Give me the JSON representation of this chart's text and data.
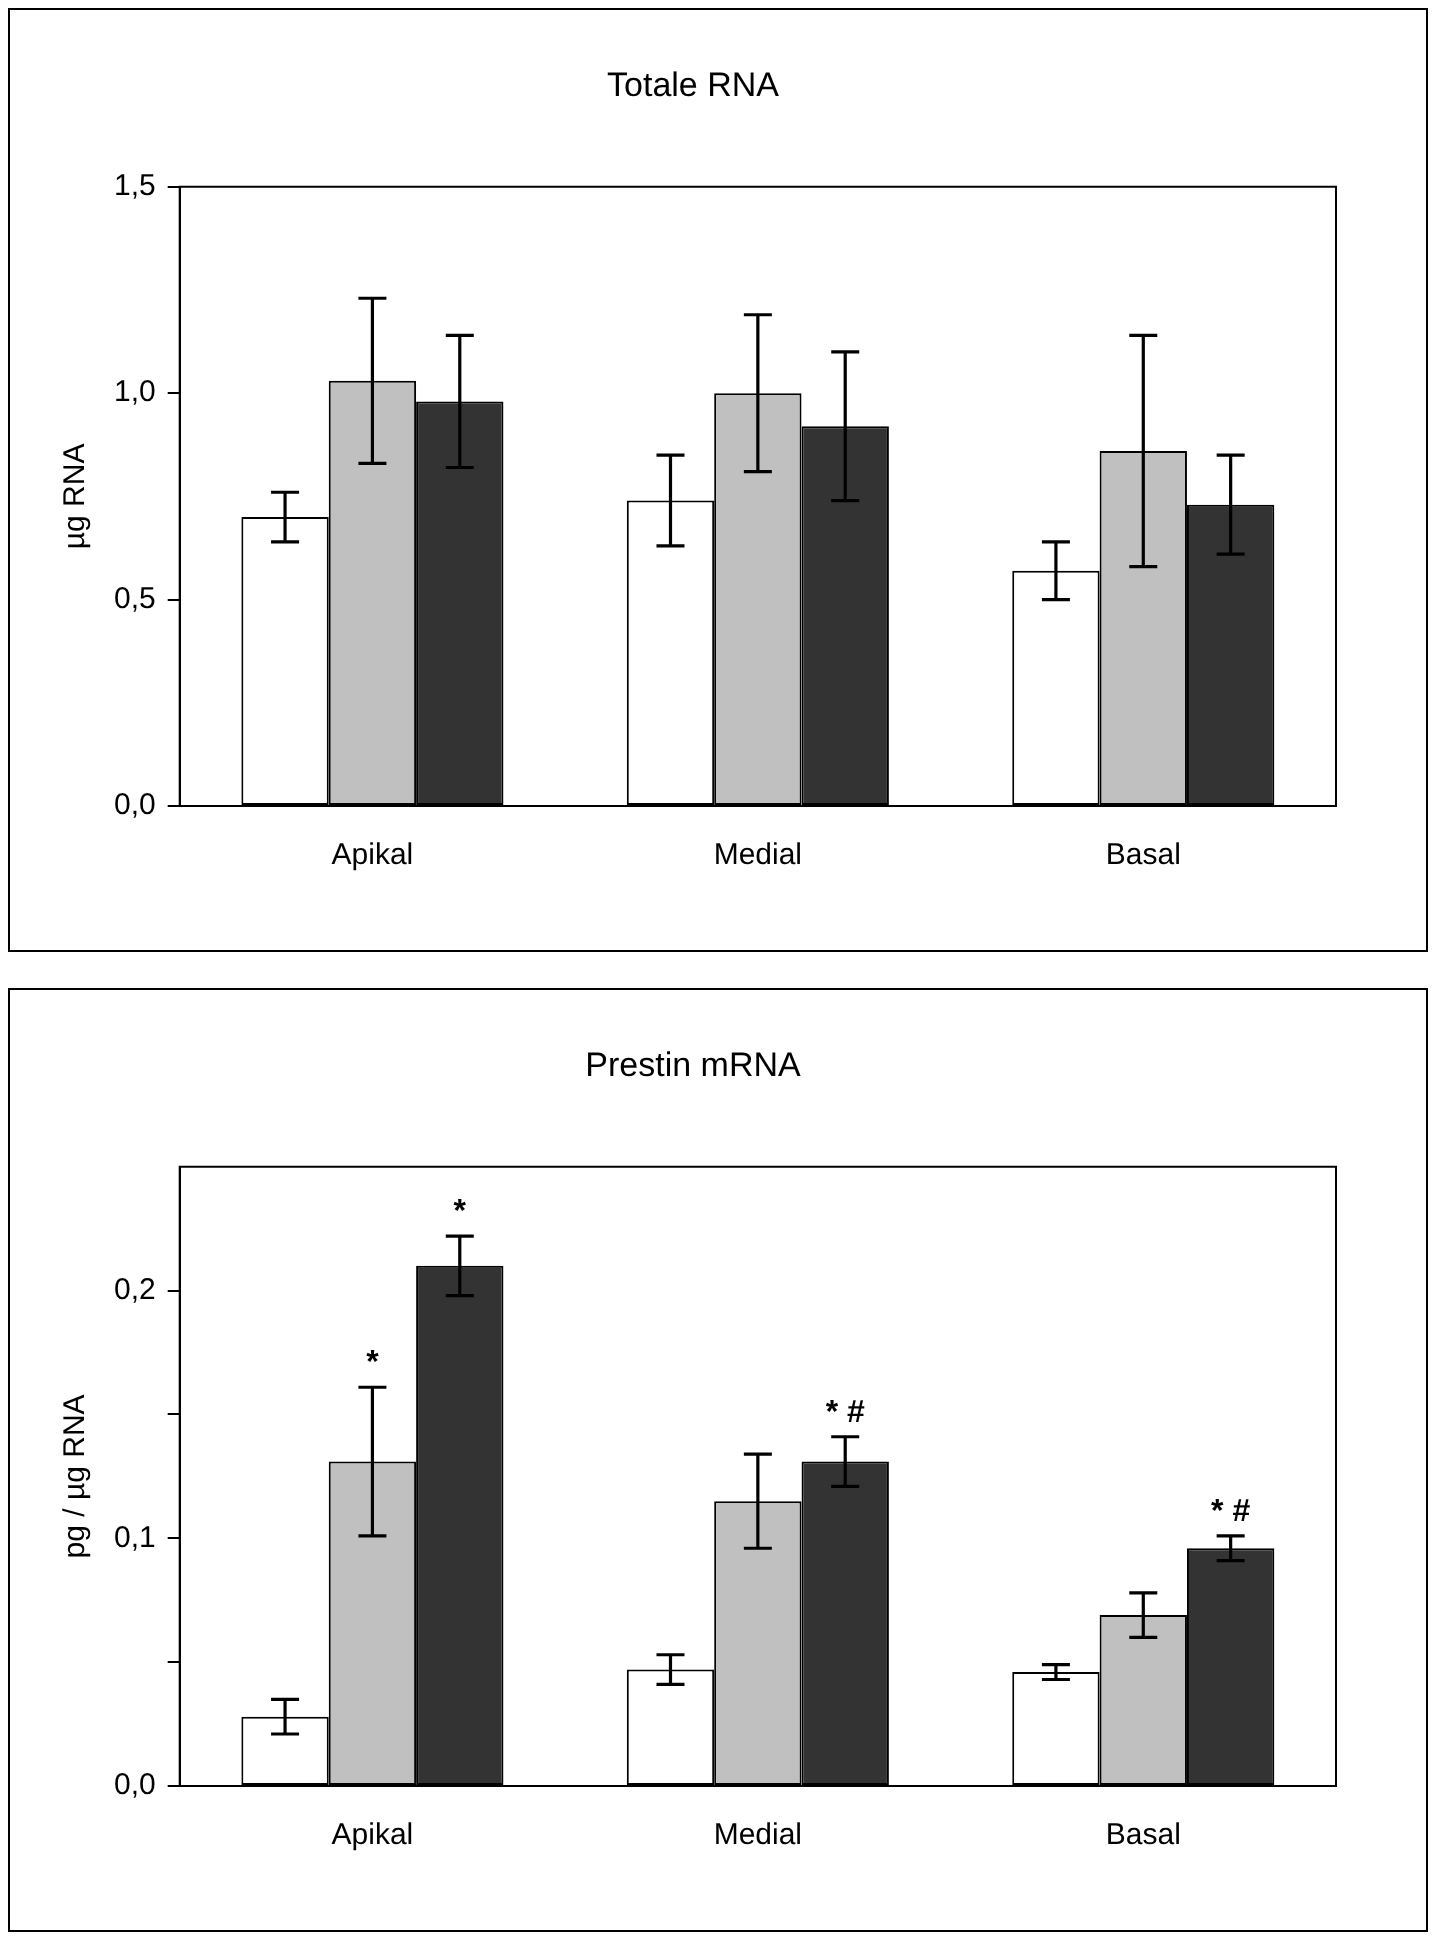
{
  "chart_data": [
    {
      "type": "bar",
      "title": "Totale RNA",
      "ylabel": "µg RNA",
      "categories": [
        "Apikal",
        "Medial",
        "Basal"
      ],
      "ylim": [
        0,
        1.5
      ],
      "yticks": [
        {
          "value": 0,
          "label": "0,0"
        },
        {
          "value": 0.5,
          "label": "0,5"
        },
        {
          "value": 1,
          "label": "1,0"
        },
        {
          "value": 1.5,
          "label": "1,5"
        }
      ],
      "grid": false,
      "legend": false,
      "series": [
        {
          "color": "#ffffff",
          "values": [
            0.7,
            0.74,
            0.57
          ],
          "errors": [
            0.06,
            0.11,
            0.07
          ]
        },
        {
          "color": "#c0c0c0",
          "values": [
            1.03,
            1.0,
            0.86
          ],
          "errors": [
            0.2,
            0.19,
            0.28
          ]
        },
        {
          "color": "#333333",
          "values": [
            0.98,
            0.92,
            0.73
          ],
          "errors": [
            0.16,
            0.18,
            0.12
          ]
        }
      ]
    },
    {
      "type": "bar",
      "title": "Prestin mRNA",
      "ylabel": "pg / µg RNA",
      "categories": [
        "Apikal",
        "Medial",
        "Basal"
      ],
      "ylim": [
        0,
        0.25
      ],
      "yticks": [
        {
          "value": 0,
          "label": "0,0"
        },
        {
          "value": 0.05,
          "label": null
        },
        {
          "value": 0.1,
          "label": "0,1"
        },
        {
          "value": 0.15,
          "label": null
        },
        {
          "value": 0.2,
          "label": "0,2"
        }
      ],
      "grid": false,
      "legend": false,
      "series": [
        {
          "color": "#ffffff",
          "values": [
            0.028,
            0.047,
            0.046
          ],
          "errors": [
            0.007,
            0.006,
            0.003
          ]
        },
        {
          "color": "#c0c0c0",
          "values": [
            0.131,
            0.115,
            0.069
          ],
          "errors": [
            0.03,
            0.019,
            0.009
          ],
          "value_labels": [
            "*",
            null,
            null
          ]
        },
        {
          "color": "#333333",
          "values": [
            0.21,
            0.131,
            0.096
          ],
          "errors": [
            0.012,
            0.01,
            0.005
          ],
          "value_labels": [
            "*",
            "* #",
            "* #"
          ]
        }
      ]
    }
  ]
}
